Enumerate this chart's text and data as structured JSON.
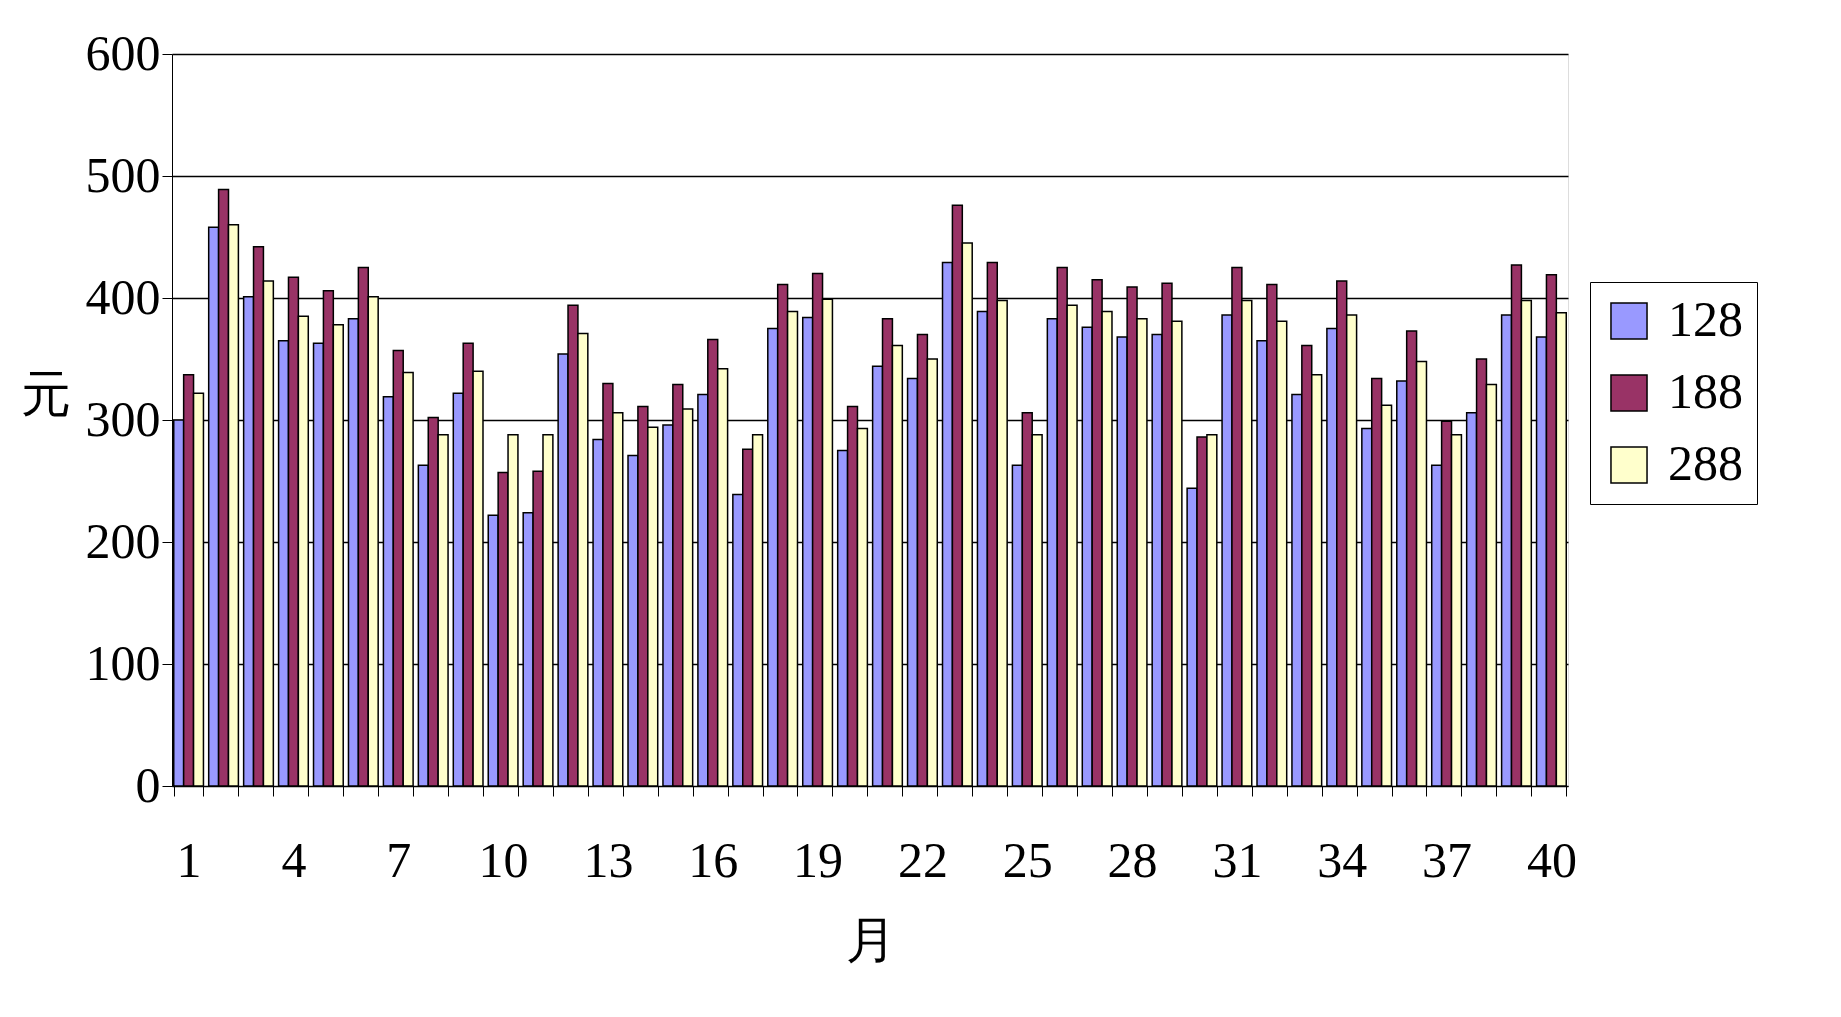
{
  "chart_data": {
    "type": "bar",
    "xlabel": "月",
    "ylabel": "元",
    "categories": [
      "1",
      null,
      null,
      "4",
      null,
      null,
      "7",
      null,
      null,
      "10",
      null,
      null,
      "13",
      null,
      null,
      "16",
      null,
      null,
      "19",
      null,
      null,
      "22",
      null,
      null,
      "25",
      null,
      null,
      "28",
      null,
      null,
      "31",
      null,
      null,
      "34",
      null,
      null,
      "37",
      null,
      null,
      "40"
    ],
    "series": [
      {
        "name": "128",
        "color": "#9999ff",
        "values": [
          300,
          458,
          401,
          365,
          363,
          383,
          319,
          263,
          322,
          222,
          224,
          354,
          284,
          271,
          296,
          321,
          239,
          375,
          384,
          275,
          344,
          334,
          429,
          389,
          263,
          383,
          376,
          368,
          370,
          244,
          386,
          365,
          321,
          375,
          293,
          332,
          263,
          306,
          386,
          368
        ]
      },
      {
        "name": "188",
        "color": "#993366",
        "values": [
          337,
          489,
          442,
          417,
          406,
          425,
          357,
          302,
          363,
          257,
          258,
          394,
          330,
          311,
          329,
          366,
          276,
          411,
          420,
          311,
          383,
          370,
          476,
          429,
          306,
          425,
          415,
          409,
          412,
          286,
          425,
          411,
          361,
          414,
          334,
          373,
          299,
          350,
          427,
          419
        ]
      },
      {
        "name": "288",
        "color": "#ffffcc",
        "values": [
          322,
          460,
          414,
          385,
          378,
          401,
          339,
          288,
          340,
          288,
          288,
          371,
          306,
          294,
          309,
          342,
          288,
          389,
          399,
          293,
          361,
          350,
          445,
          398,
          288,
          394,
          389,
          383,
          381,
          288,
          398,
          381,
          337,
          386,
          312,
          348,
          288,
          329,
          398,
          388
        ]
      }
    ],
    "ylim": [
      0,
      600
    ],
    "yticks": [
      0,
      100,
      200,
      300,
      400,
      500,
      600
    ],
    "grid": "y",
    "legend": "right"
  }
}
